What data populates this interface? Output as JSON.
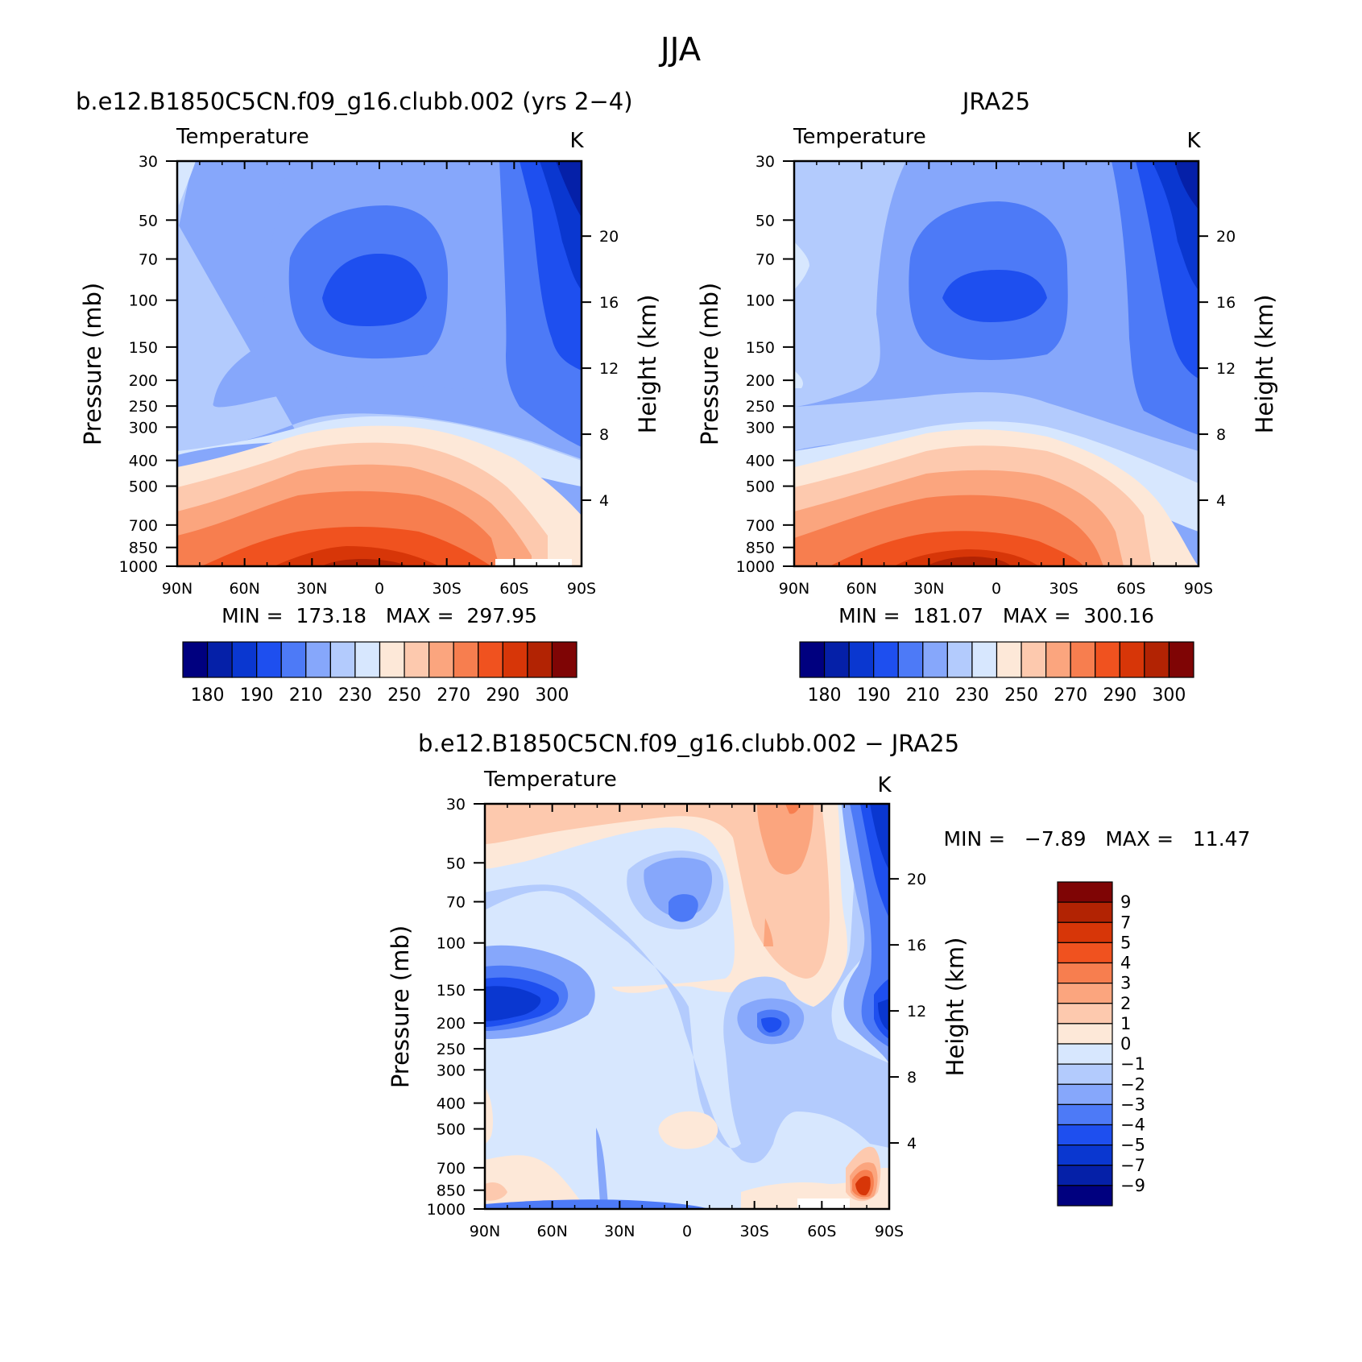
{
  "figure_title": "JJA",
  "panels": {
    "model": {
      "title": "b.e12.B1850C5CN.f09_g16.clubb.002 (yrs 2−4)",
      "subtitle": "Temperature",
      "units": "K",
      "ylabel": "Pressure (mb)",
      "ylabel_right": "Height (km)",
      "min_max": "MIN =  173.18   MAX =  297.95"
    },
    "obs": {
      "title": "JRA25",
      "subtitle": "Temperature",
      "units": "K",
      "ylabel": "Pressure (mb)",
      "ylabel_right": "Height (km)",
      "min_max": "MIN =  181.07   MAX =  300.16"
    },
    "diff": {
      "title": "b.e12.B1850C5CN.f09_g16.clubb.002 − JRA25",
      "subtitle": "Temperature",
      "units": "K",
      "ylabel": "Pressure (mb)",
      "ylabel_right": "Height (km)",
      "min_max": "MIN =   −7.89   MAX =   11.47"
    }
  },
  "colors": {
    "abs_scale": [
      "#00007f",
      "#0520a8",
      "#0a37d0",
      "#1e4fef",
      "#4d7af7",
      "#86a7fb",
      "#b3cbfd",
      "#d7e7fe",
      "#fde8d8",
      "#fdc9ae",
      "#fba57e",
      "#f77e4f",
      "#f0521f",
      "#d73608",
      "#b22303",
      "#7f0505"
    ],
    "diff_scale": [
      "#00007f",
      "#0520a8",
      "#0a37d0",
      "#1e4fef",
      "#4d7af7",
      "#86a7fb",
      "#b3cbfd",
      "#d7e7fe",
      "#fde8d8",
      "#fdc9ae",
      "#fba57e",
      "#f77e4f",
      "#f0521f",
      "#d73608",
      "#b22303",
      "#7f0505"
    ]
  },
  "chart_data": [
    {
      "type": "heatmap",
      "name": "model",
      "title": "b.e12.B1850C5CN.f09_g16.clubb.002 (yrs 2−4)",
      "subtitle": "Temperature",
      "units": "K",
      "x_ticks": [
        "90N",
        "60N",
        "30N",
        "0",
        "30S",
        "60S",
        "90S"
      ],
      "x_values": [
        90,
        60,
        30,
        0,
        -30,
        -60,
        -90
      ],
      "y_ticks": [
        "30",
        "50",
        "70",
        "100",
        "150",
        "200",
        "250",
        "300",
        "400",
        "500",
        "700",
        "850",
        "1000"
      ],
      "y_values": [
        30,
        50,
        70,
        100,
        150,
        200,
        250,
        300,
        400,
        500,
        700,
        850,
        1000
      ],
      "y_log": true,
      "y2_ticks": [
        "4",
        "8",
        "12",
        "16",
        "20"
      ],
      "y2_values": [
        4,
        8,
        12,
        16,
        20
      ],
      "contour_levels": [
        180,
        185,
        190,
        200,
        210,
        220,
        230,
        240,
        250,
        260,
        270,
        280,
        290,
        295,
        300
      ],
      "colorbar_labels": [
        "180",
        "190",
        "210",
        "230",
        "250",
        "270",
        "290",
        "300"
      ],
      "min": 173.18,
      "max": 297.95
    },
    {
      "type": "heatmap",
      "name": "obs",
      "title": "JRA25",
      "subtitle": "Temperature",
      "units": "K",
      "x_ticks": [
        "90N",
        "60N",
        "30N",
        "0",
        "30S",
        "60S",
        "90S"
      ],
      "x_values": [
        90,
        60,
        30,
        0,
        -30,
        -60,
        -90
      ],
      "y_ticks": [
        "30",
        "50",
        "70",
        "100",
        "150",
        "200",
        "250",
        "300",
        "400",
        "500",
        "700",
        "850",
        "1000"
      ],
      "y_values": [
        30,
        50,
        70,
        100,
        150,
        200,
        250,
        300,
        400,
        500,
        700,
        850,
        1000
      ],
      "y_log": true,
      "y2_ticks": [
        "4",
        "8",
        "12",
        "16",
        "20"
      ],
      "y2_values": [
        4,
        8,
        12,
        16,
        20
      ],
      "contour_levels": [
        180,
        185,
        190,
        200,
        210,
        220,
        230,
        240,
        250,
        260,
        270,
        280,
        290,
        295,
        300
      ],
      "colorbar_labels": [
        "180",
        "190",
        "210",
        "230",
        "250",
        "270",
        "290",
        "300"
      ],
      "min": 181.07,
      "max": 300.16
    },
    {
      "type": "heatmap",
      "name": "diff",
      "title": "b.e12.B1850C5CN.f09_g16.clubb.002 − JRA25",
      "subtitle": "Temperature",
      "units": "K",
      "x_ticks": [
        "90N",
        "60N",
        "30N",
        "0",
        "30S",
        "60S",
        "90S"
      ],
      "x_values": [
        90,
        60,
        30,
        0,
        -30,
        -60,
        -90
      ],
      "y_ticks": [
        "30",
        "50",
        "70",
        "100",
        "150",
        "200",
        "250",
        "300",
        "400",
        "500",
        "700",
        "850",
        "1000"
      ],
      "y_values": [
        30,
        50,
        70,
        100,
        150,
        200,
        250,
        300,
        400,
        500,
        700,
        850,
        1000
      ],
      "y_log": true,
      "y2_ticks": [
        "4",
        "8",
        "12",
        "16",
        "20"
      ],
      "y2_values": [
        4,
        8,
        12,
        16,
        20
      ],
      "contour_levels": [
        -9,
        -7,
        -5,
        -4,
        -3,
        -2,
        -1,
        0,
        1,
        2,
        3,
        4,
        5,
        7,
        9
      ],
      "colorbar_labels": [
        "9",
        "7",
        "5",
        "4",
        "3",
        "2",
        "1",
        "0",
        "−1",
        "−2",
        "−3",
        "−4",
        "−5",
        "−7",
        "−9"
      ],
      "min": -7.89,
      "max": 11.47
    }
  ]
}
